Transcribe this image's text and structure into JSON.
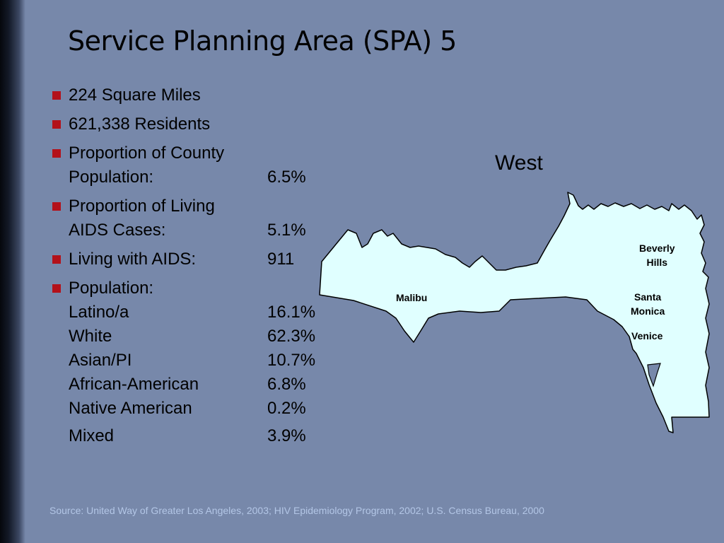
{
  "slide": {
    "title": "Service Planning Area (SPA) 5",
    "bullets": [
      {
        "label": "224 Square Miles"
      },
      {
        "label": "621,338 Residents"
      },
      {
        "label": "Proportion of County",
        "sub_label": "Population:",
        "value": "6.5%"
      },
      {
        "label": "Proportion of Living",
        "sub_label": "AIDS Cases:",
        "value": "5.1%"
      },
      {
        "label": "Living with AIDS:",
        "value": "911"
      },
      {
        "label": "Population:"
      }
    ],
    "population": [
      {
        "group": "Latino/a",
        "value": "16.1%"
      },
      {
        "group": "White",
        "value": "62.3%"
      },
      {
        "group": "Asian/PI",
        "value": "10.7%"
      },
      {
        "group": "African-American",
        "value": "6.8%"
      },
      {
        "group": "Native American",
        "value": "0.2%"
      },
      {
        "group": "Mixed",
        "value": "3.9%"
      }
    ],
    "map": {
      "heading": "West",
      "fill_color": "#e0ffff",
      "places": {
        "malibu": "Malibu",
        "beverly_hills": [
          "Beverly",
          "Hills"
        ],
        "santa_monica": [
          "Santa",
          "Monica"
        ],
        "venice": "Venice"
      }
    },
    "source": "Source: United Way of Greater Los Angeles, 2003; HIV Epidemiology Program, 2002; U.S. Census Bureau, 2000",
    "colors": {
      "background": "#7788aa",
      "bullet": "#b3111a",
      "source_text": "#b3c6e6"
    }
  }
}
